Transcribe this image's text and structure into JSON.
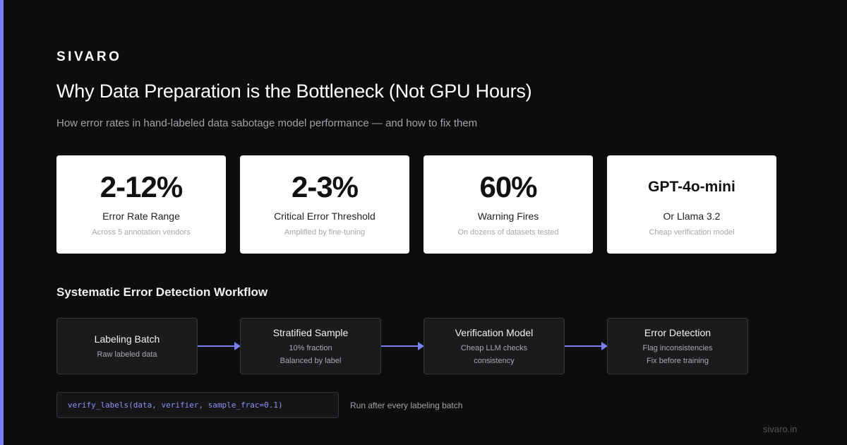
{
  "brand": "SIVARO",
  "title": "Why Data Preparation is the Bottleneck (Not GPU Hours)",
  "subtitle": "How error rates in hand-labeled data sabotage model performance — and how to fix them",
  "stats": [
    {
      "value": "2-12%",
      "label": "Error Rate Range",
      "sub": "Across 5 annotation vendors"
    },
    {
      "value": "2-3%",
      "label": "Critical Error Threshold",
      "sub": "Amplified by fine-tuning"
    },
    {
      "value": "60%",
      "label": "Warning Fires",
      "sub": "On dozens of datasets tested"
    },
    {
      "value": "GPT-4o-mini",
      "label": "Or Llama 3.2",
      "sub": "Cheap verification model"
    }
  ],
  "workflow": {
    "title": "Systematic Error Detection Workflow",
    "steps": [
      {
        "title": "Labeling Batch",
        "lines": [
          "Raw labeled data"
        ]
      },
      {
        "title": "Stratified Sample",
        "lines": [
          "10% fraction",
          "Balanced by label"
        ]
      },
      {
        "title": "Verification Model",
        "lines": [
          "Cheap LLM checks",
          "consistency"
        ]
      },
      {
        "title": "Error Detection",
        "lines": [
          "Flag inconsistencies",
          "Fix before training"
        ]
      }
    ]
  },
  "code": {
    "snippet": "verify_labels(data, verifier, sample_frac=0.1)",
    "note": "Run after every labeling batch"
  },
  "footer": {
    "url": "sivaro.in"
  },
  "colors": {
    "accent": "#7b7ff0",
    "background": "#0d0d0e",
    "card": "#ffffff",
    "code": "#8d92f5"
  }
}
